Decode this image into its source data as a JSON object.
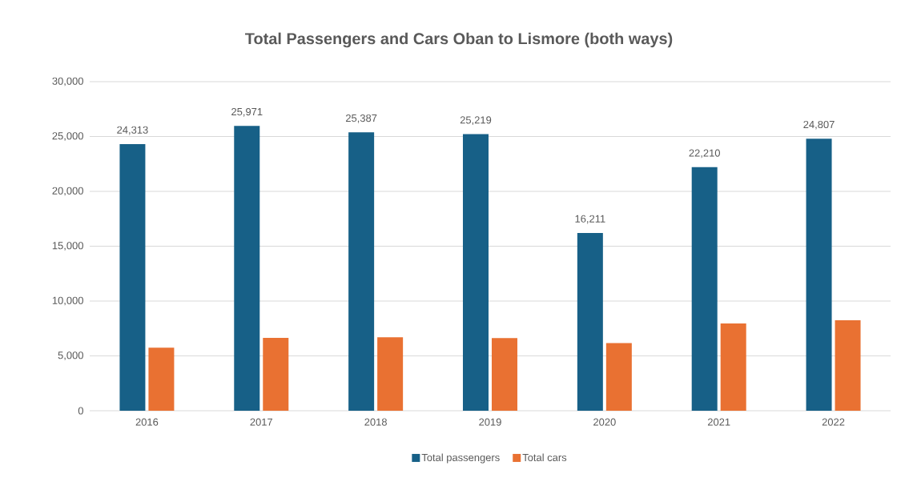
{
  "chart_data": {
    "type": "bar",
    "title": "Total Passengers and Cars Oban to Lismore (both ways)",
    "categories": [
      "2016",
      "2017",
      "2018",
      "2019",
      "2020",
      "2021",
      "2022"
    ],
    "series": [
      {
        "name": "Total passengers",
        "color": "#176087",
        "values": [
          24313,
          25971,
          25387,
          25219,
          16211,
          22210,
          24807
        ],
        "value_labels": [
          "24,313",
          "25,971",
          "25,387",
          "25,219",
          "16,211",
          "22,210",
          "24,807"
        ]
      },
      {
        "name": "Total cars",
        "color": "#e97132",
        "values": [
          5750,
          6650,
          6700,
          6630,
          6170,
          7950,
          8240
        ]
      }
    ],
    "ylim": [
      0,
      30000
    ],
    "yticks": [
      {
        "value": 0,
        "label": "0"
      },
      {
        "value": 5000,
        "label": "5,000"
      },
      {
        "value": 10000,
        "label": "10,000"
      },
      {
        "value": 15000,
        "label": "15,000"
      },
      {
        "value": 20000,
        "label": "20,000"
      },
      {
        "value": 25000,
        "label": "25,000"
      },
      {
        "value": 30000,
        "label": "30,000"
      }
    ],
    "grid": "y",
    "legend": "bottom"
  }
}
